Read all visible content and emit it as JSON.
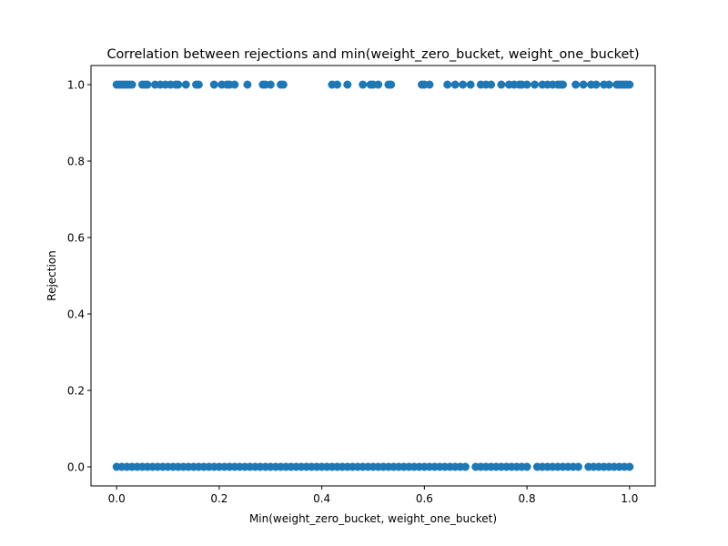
{
  "chart_data": {
    "type": "scatter",
    "title": "Correlation between rejections and min(weight_zero_bucket, weight_one_bucket)",
    "xlabel": "Min(weight_zero_bucket, weight_one_bucket)",
    "ylabel": "Rejection",
    "xlim": [
      -0.05,
      1.05
    ],
    "ylim": [
      -0.05,
      1.05
    ],
    "xticks": [
      0.0,
      0.2,
      0.4,
      0.6,
      0.8,
      1.0
    ],
    "xtick_labels": [
      "0.0",
      "0.2",
      "0.4",
      "0.6",
      "0.8",
      "1.0"
    ],
    "yticks": [
      0.0,
      0.2,
      0.4,
      0.6,
      0.8,
      1.0
    ],
    "ytick_labels": [
      "0.0",
      "0.2",
      "0.4",
      "0.6",
      "0.8",
      "1.0"
    ],
    "grid": false,
    "marker_color": "#1f77b4",
    "series": [
      {
        "points": [
          [
            0.0,
            1
          ],
          [
            0.005,
            1
          ],
          [
            0.01,
            1
          ],
          [
            0.015,
            1
          ],
          [
            0.02,
            1
          ],
          [
            0.025,
            1
          ],
          [
            0.03,
            1
          ],
          [
            0.05,
            1
          ],
          [
            0.055,
            1
          ],
          [
            0.06,
            1
          ],
          [
            0.075,
            1
          ],
          [
            0.085,
            1
          ],
          [
            0.095,
            1
          ],
          [
            0.105,
            1
          ],
          [
            0.115,
            1
          ],
          [
            0.12,
            1
          ],
          [
            0.135,
            1
          ],
          [
            0.155,
            1
          ],
          [
            0.16,
            1
          ],
          [
            0.19,
            1
          ],
          [
            0.205,
            1
          ],
          [
            0.215,
            1
          ],
          [
            0.22,
            1
          ],
          [
            0.23,
            1
          ],
          [
            0.255,
            1
          ],
          [
            0.285,
            1
          ],
          [
            0.29,
            1
          ],
          [
            0.3,
            1
          ],
          [
            0.32,
            1
          ],
          [
            0.325,
            1
          ],
          [
            0.42,
            1
          ],
          [
            0.43,
            1
          ],
          [
            0.45,
            1
          ],
          [
            0.48,
            1
          ],
          [
            0.495,
            1
          ],
          [
            0.5,
            1
          ],
          [
            0.51,
            1
          ],
          [
            0.53,
            1
          ],
          [
            0.535,
            1
          ],
          [
            0.595,
            1
          ],
          [
            0.6,
            1
          ],
          [
            0.61,
            1
          ],
          [
            0.645,
            1
          ],
          [
            0.66,
            1
          ],
          [
            0.675,
            1
          ],
          [
            0.69,
            1
          ],
          [
            0.71,
            1
          ],
          [
            0.72,
            1
          ],
          [
            0.73,
            1
          ],
          [
            0.75,
            1
          ],
          [
            0.765,
            1
          ],
          [
            0.775,
            1
          ],
          [
            0.785,
            1
          ],
          [
            0.79,
            1
          ],
          [
            0.8,
            1
          ],
          [
            0.815,
            1
          ],
          [
            0.83,
            1
          ],
          [
            0.84,
            1
          ],
          [
            0.85,
            1
          ],
          [
            0.86,
            1
          ],
          [
            0.865,
            1
          ],
          [
            0.87,
            1
          ],
          [
            0.895,
            1
          ],
          [
            0.91,
            1
          ],
          [
            0.925,
            1
          ],
          [
            0.935,
            1
          ],
          [
            0.95,
            1
          ],
          [
            0.96,
            1
          ],
          [
            0.975,
            1
          ],
          [
            0.98,
            1
          ],
          [
            0.985,
            1
          ],
          [
            0.99,
            1
          ],
          [
            0.995,
            1
          ],
          [
            1.0,
            1
          ],
          [
            0.0,
            0
          ],
          [
            0.01,
            0
          ],
          [
            0.02,
            0
          ],
          [
            0.03,
            0
          ],
          [
            0.04,
            0
          ],
          [
            0.05,
            0
          ],
          [
            0.06,
            0
          ],
          [
            0.07,
            0
          ],
          [
            0.08,
            0
          ],
          [
            0.09,
            0
          ],
          [
            0.1,
            0
          ],
          [
            0.11,
            0
          ],
          [
            0.12,
            0
          ],
          [
            0.13,
            0
          ],
          [
            0.14,
            0
          ],
          [
            0.15,
            0
          ],
          [
            0.16,
            0
          ],
          [
            0.17,
            0
          ],
          [
            0.18,
            0
          ],
          [
            0.19,
            0
          ],
          [
            0.2,
            0
          ],
          [
            0.21,
            0
          ],
          [
            0.22,
            0
          ],
          [
            0.23,
            0
          ],
          [
            0.24,
            0
          ],
          [
            0.25,
            0
          ],
          [
            0.26,
            0
          ],
          [
            0.27,
            0
          ],
          [
            0.28,
            0
          ],
          [
            0.29,
            0
          ],
          [
            0.3,
            0
          ],
          [
            0.31,
            0
          ],
          [
            0.32,
            0
          ],
          [
            0.33,
            0
          ],
          [
            0.34,
            0
          ],
          [
            0.35,
            0
          ],
          [
            0.36,
            0
          ],
          [
            0.37,
            0
          ],
          [
            0.38,
            0
          ],
          [
            0.39,
            0
          ],
          [
            0.4,
            0
          ],
          [
            0.41,
            0
          ],
          [
            0.42,
            0
          ],
          [
            0.43,
            0
          ],
          [
            0.44,
            0
          ],
          [
            0.45,
            0
          ],
          [
            0.46,
            0
          ],
          [
            0.47,
            0
          ],
          [
            0.48,
            0
          ],
          [
            0.49,
            0
          ],
          [
            0.5,
            0
          ],
          [
            0.51,
            0
          ],
          [
            0.52,
            0
          ],
          [
            0.53,
            0
          ],
          [
            0.54,
            0
          ],
          [
            0.55,
            0
          ],
          [
            0.56,
            0
          ],
          [
            0.57,
            0
          ],
          [
            0.58,
            0
          ],
          [
            0.59,
            0
          ],
          [
            0.6,
            0
          ],
          [
            0.61,
            0
          ],
          [
            0.62,
            0
          ],
          [
            0.63,
            0
          ],
          [
            0.64,
            0
          ],
          [
            0.65,
            0
          ],
          [
            0.66,
            0
          ],
          [
            0.67,
            0
          ],
          [
            0.68,
            0
          ],
          [
            0.7,
            0
          ],
          [
            0.71,
            0
          ],
          [
            0.72,
            0
          ],
          [
            0.73,
            0
          ],
          [
            0.74,
            0
          ],
          [
            0.75,
            0
          ],
          [
            0.76,
            0
          ],
          [
            0.77,
            0
          ],
          [
            0.78,
            0
          ],
          [
            0.79,
            0
          ],
          [
            0.8,
            0
          ],
          [
            0.82,
            0
          ],
          [
            0.83,
            0
          ],
          [
            0.84,
            0
          ],
          [
            0.85,
            0
          ],
          [
            0.86,
            0
          ],
          [
            0.87,
            0
          ],
          [
            0.88,
            0
          ],
          [
            0.89,
            0
          ],
          [
            0.9,
            0
          ],
          [
            0.92,
            0
          ],
          [
            0.93,
            0
          ],
          [
            0.94,
            0
          ],
          [
            0.95,
            0
          ],
          [
            0.96,
            0
          ],
          [
            0.97,
            0
          ],
          [
            0.98,
            0
          ],
          [
            0.99,
            0
          ],
          [
            1.0,
            0
          ]
        ]
      }
    ]
  }
}
